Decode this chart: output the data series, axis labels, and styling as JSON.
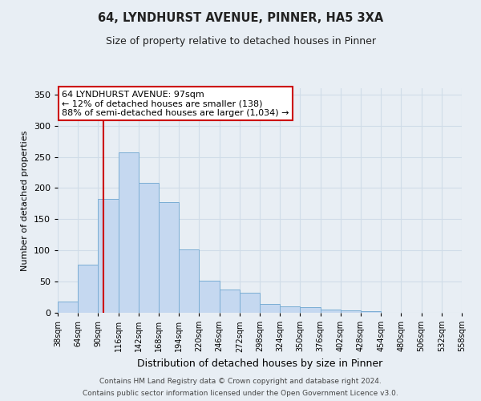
{
  "title": "64, LYNDHURST AVENUE, PINNER, HA5 3XA",
  "subtitle": "Size of property relative to detached houses in Pinner",
  "xlabel": "Distribution of detached houses by size in Pinner",
  "ylabel": "Number of detached properties",
  "bar_values": [
    18,
    77,
    183,
    257,
    208,
    178,
    101,
    51,
    37,
    32,
    14,
    10,
    9,
    5,
    4,
    2
  ],
  "bin_edges": [
    38,
    64,
    90,
    116,
    142,
    168,
    194,
    220,
    246,
    272,
    298,
    324,
    350,
    376,
    402,
    428,
    454,
    480,
    506,
    532,
    558
  ],
  "bin_labels": [
    "38sqm",
    "64sqm",
    "90sqm",
    "116sqm",
    "142sqm",
    "168sqm",
    "194sqm",
    "220sqm",
    "246sqm",
    "272sqm",
    "298sqm",
    "324sqm",
    "350sqm",
    "376sqm",
    "402sqm",
    "428sqm",
    "454sqm",
    "480sqm",
    "506sqm",
    "532sqm",
    "558sqm"
  ],
  "bar_color": "#c5d8f0",
  "bar_edge_color": "#7aadd4",
  "grid_color": "#d0dce8",
  "background_color": "#e8eef4",
  "plot_bg_color": "#e8eef4",
  "property_value": 97,
  "vline_color": "#cc0000",
  "annotation_line1": "64 LYNDHURST AVENUE: 97sqm",
  "annotation_line2": "← 12% of detached houses are smaller (138)",
  "annotation_line3": "88% of semi-detached houses are larger (1,034) →",
  "annotation_box_edge_color": "#cc0000",
  "ylim": [
    0,
    360
  ],
  "yticks": [
    0,
    50,
    100,
    150,
    200,
    250,
    300,
    350
  ],
  "footer_line1": "Contains HM Land Registry data © Crown copyright and database right 2024.",
  "footer_line2": "Contains public sector information licensed under the Open Government Licence v3.0."
}
